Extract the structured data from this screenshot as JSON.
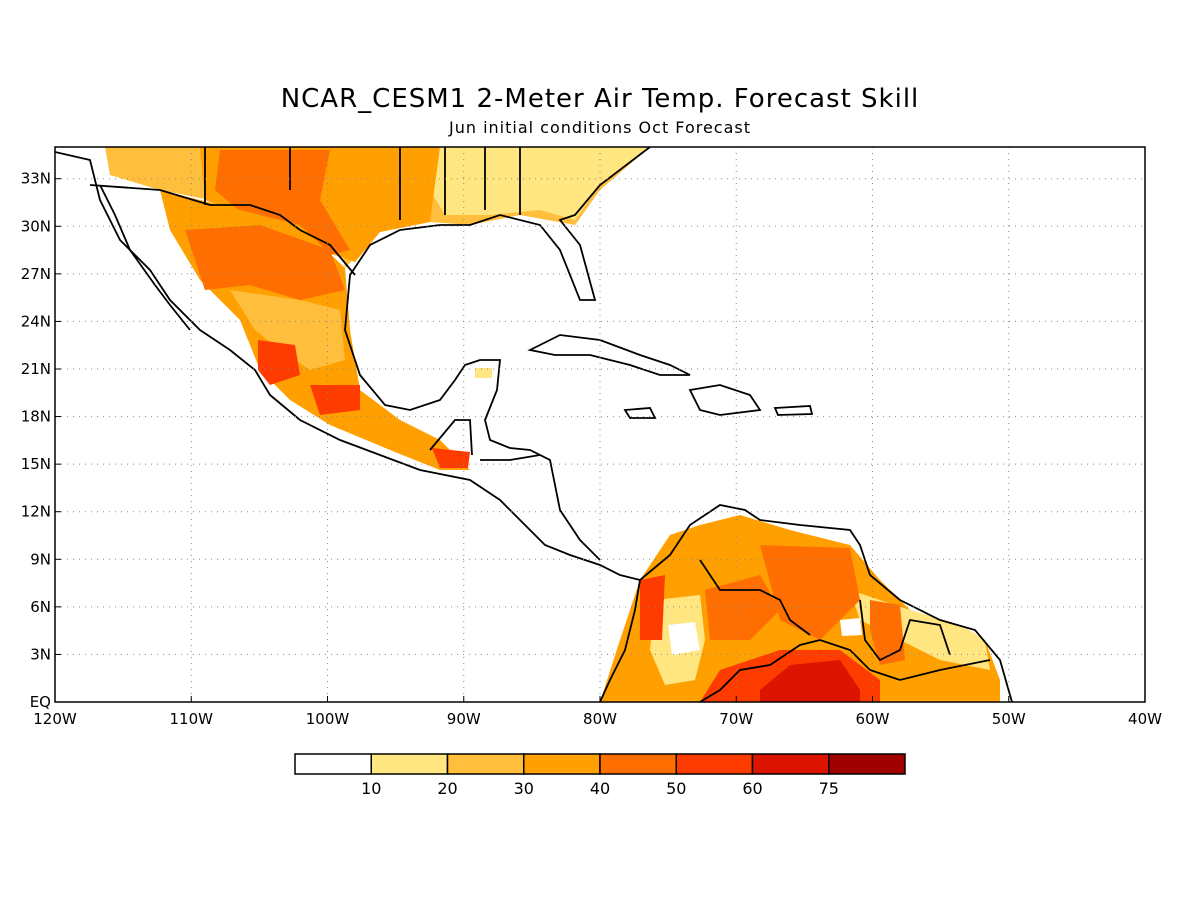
{
  "header": {
    "title": "NCAR_CESM1 2-Meter Air Temp. Forecast Skill",
    "subtitle": "Jun initial conditions  Oct Forecast"
  },
  "axes": {
    "lat_labels": [
      "EQ",
      "3N",
      "6N",
      "9N",
      "12N",
      "15N",
      "18N",
      "21N",
      "24N",
      "27N",
      "30N",
      "33N"
    ],
    "lon_labels": [
      "120W",
      "110W",
      "100W",
      "90W",
      "80W",
      "70W",
      "60W",
      "50W",
      "40W"
    ]
  },
  "colorbar": {
    "labels": [
      "10",
      "20",
      "30",
      "40",
      "50",
      "60",
      "75"
    ],
    "colors": [
      "#ffffff",
      "#ffe680",
      "#ffbe3c",
      "#ffa000",
      "#ff6e00",
      "#ff3c00",
      "#dc1400",
      "#a00000"
    ]
  },
  "chart_data": {
    "type": "heatmap",
    "title": "NCAR_CESM1 2-Meter Air Temp. Forecast Skill",
    "subtitle": "Jun initial conditions  Oct Forecast",
    "lon_range": [
      -120,
      -40
    ],
    "lat_range": [
      0,
      35
    ],
    "levels": [
      10,
      20,
      30,
      40,
      50,
      60,
      75
    ],
    "grid": true
  }
}
